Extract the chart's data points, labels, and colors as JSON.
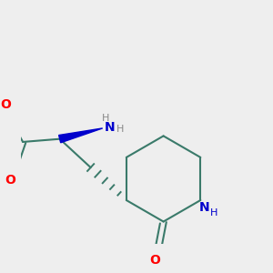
{
  "bg_color": "#eeeeee",
  "bond_color": "#3a7a6a",
  "bond_width": 1.5,
  "atom_colors": {
    "O": "#ff0000",
    "N": "#0000cc",
    "C": "#3a7a6a",
    "H": "#888888"
  },
  "font_size_atom": 10,
  "font_size_H": 8,
  "font_size_me": 9
}
